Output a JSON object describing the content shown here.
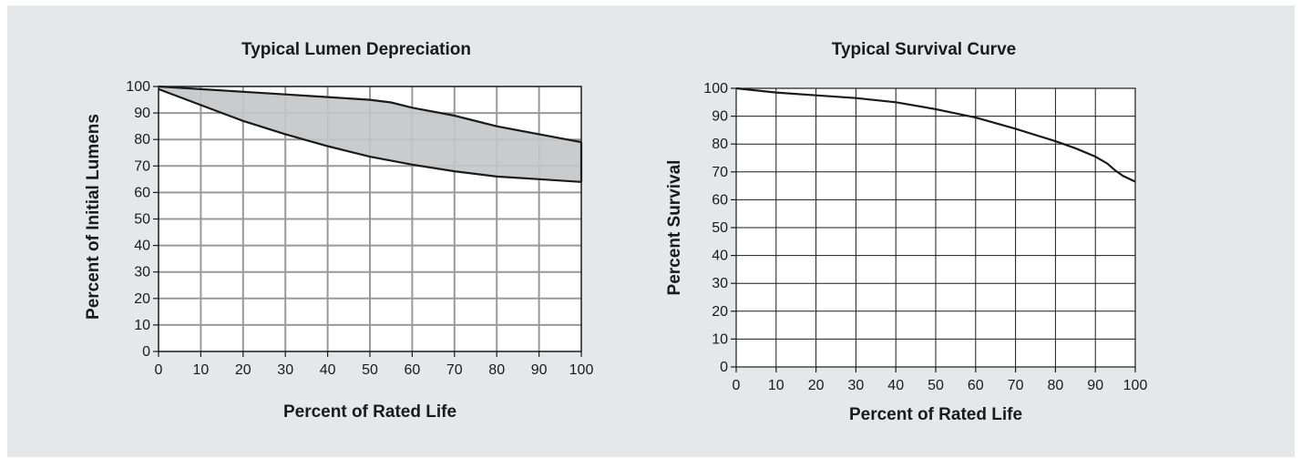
{
  "panel_bg": "#e6e7e9",
  "chart_data": [
    {
      "type": "area",
      "title": "Typical Lumen Depreciation",
      "xlabel": "Percent of Rated Life",
      "ylabel": "Percent of Initial Lumens",
      "xlim": [
        0,
        100
      ],
      "ylim": [
        0,
        100
      ],
      "xticks": [
        "0",
        "10",
        "20",
        "30",
        "40",
        "50",
        "60",
        "70",
        "80",
        "90",
        "100"
      ],
      "yticks": [
        "0",
        "10",
        "20",
        "30",
        "40",
        "50",
        "60",
        "70",
        "80",
        "90",
        "100"
      ],
      "grid": true,
      "grid_color": "#999999",
      "fill_color": "#c4c5c7",
      "series": [
        {
          "x": [
            0,
            10,
            20,
            30,
            40,
            50,
            55,
            60,
            70,
            80,
            90,
            100
          ],
          "y": [
            100,
            99,
            98,
            97,
            96,
            95,
            94,
            92,
            89,
            85,
            82,
            79
          ]
        },
        {
          "x": [
            0,
            10,
            20,
            30,
            40,
            50,
            60,
            70,
            80,
            90,
            100
          ],
          "y": [
            99,
            93,
            87,
            82,
            77.5,
            73.5,
            70.5,
            68,
            66,
            65,
            64
          ]
        }
      ]
    },
    {
      "type": "line",
      "title": "Typical Survival Curve",
      "xlabel": "Percent of Rated Life",
      "ylabel": "Percent Survival",
      "xlim": [
        0,
        100
      ],
      "ylim": [
        0,
        100
      ],
      "xticks": [
        "0",
        "10",
        "20",
        "30",
        "40",
        "50",
        "60",
        "70",
        "80",
        "90",
        "100"
      ],
      "yticks": [
        "0",
        "10",
        "20",
        "30",
        "40",
        "50",
        "60",
        "70",
        "80",
        "90",
        "100"
      ],
      "grid": true,
      "grid_color": "#1a1a1a",
      "plot_bg": "#ffffff",
      "series": [
        {
          "x": [
            0,
            10,
            20,
            30,
            40,
            50,
            60,
            70,
            80,
            85,
            90,
            93,
            95,
            97,
            100
          ],
          "y": [
            100,
            98.5,
            97.5,
            96.5,
            95,
            92.5,
            89.5,
            85.5,
            81,
            78.5,
            75.5,
            73,
            70.5,
            68.5,
            66.5
          ]
        }
      ]
    }
  ]
}
